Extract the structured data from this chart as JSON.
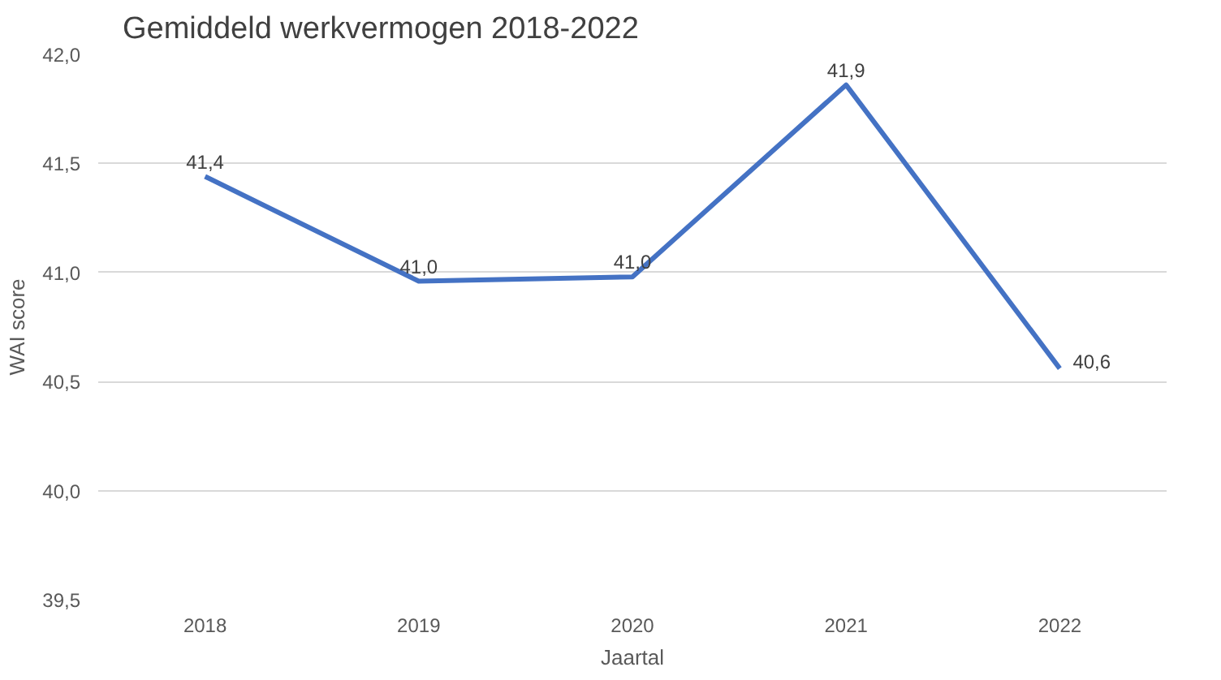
{
  "chart_data": {
    "type": "line",
    "title": "Gemiddeld werkvermogen 2018-2022",
    "xlabel": "Jaartal",
    "ylabel": "WAI score",
    "categories": [
      "2018",
      "2019",
      "2020",
      "2021",
      "2022"
    ],
    "series": [
      {
        "color": "#4472c4",
        "values": [
          41.44,
          40.96,
          40.98,
          41.86,
          40.56
        ],
        "value_labels": [
          "41,4",
          "41,0",
          "41,0",
          "41,9",
          "40,6"
        ]
      }
    ],
    "ylim": [
      39.5,
      42.0
    ],
    "yticks": [
      {
        "value": 39.5,
        "label": "39,5"
      },
      {
        "value": 40.0,
        "label": "40,0"
      },
      {
        "value": 40.5,
        "label": "40,5"
      },
      {
        "value": 41.0,
        "label": "41,0"
      },
      {
        "value": 41.5,
        "label": "41,5"
      },
      {
        "value": 42.0,
        "label": "42,0"
      }
    ],
    "grid": "y",
    "marker": "none",
    "line_style": "solid"
  }
}
